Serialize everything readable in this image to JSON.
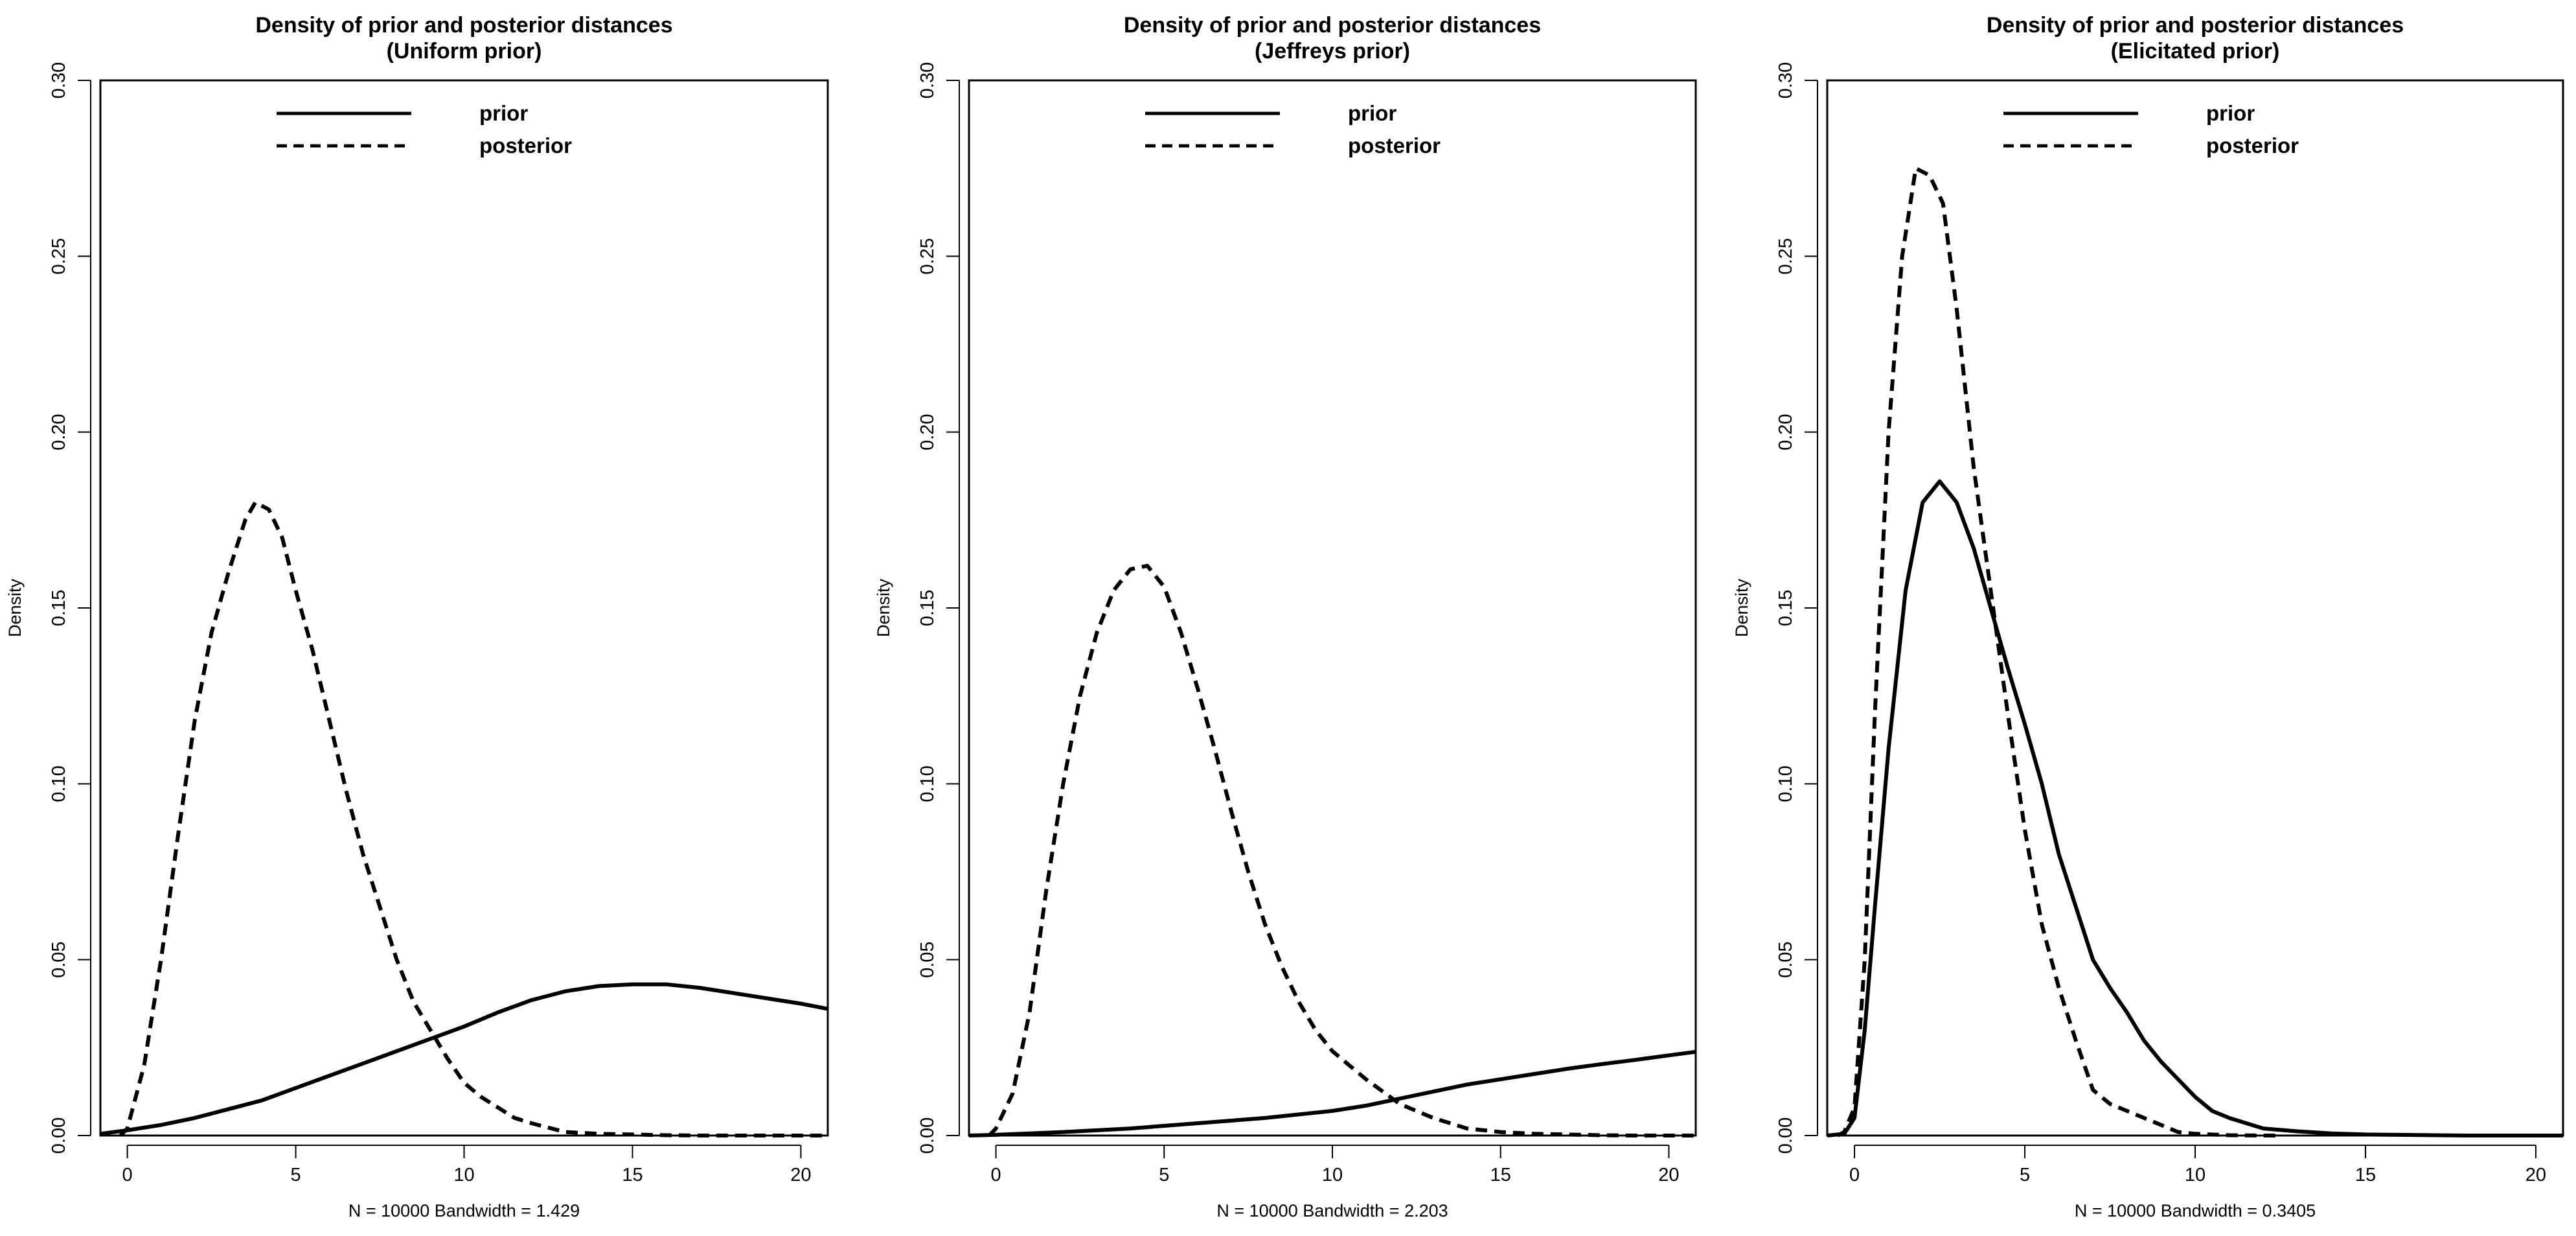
{
  "chart_data": [
    {
      "type": "line",
      "title": "Density of prior and posterior distances",
      "subtitle": "(Uniform prior)",
      "xlabel": "N = 10000   Bandwidth = 1.429",
      "ylabel": "Density",
      "xlim": [
        -0.8,
        20.8
      ],
      "ylim": [
        0,
        0.3
      ],
      "x_ticks": [
        0,
        5,
        10,
        15,
        20
      ],
      "y_ticks": [
        0.0,
        0.05,
        0.1,
        0.15,
        0.2,
        0.25,
        0.3
      ],
      "y_tick_labels": [
        "0.00",
        "0.05",
        "0.10",
        "0.15",
        "0.20",
        "0.25",
        "0.30"
      ],
      "grid": false,
      "legend_position": "top",
      "series": [
        {
          "name": "prior",
          "style": "solid",
          "x": [
            -0.8,
            0,
            1,
            2,
            3,
            4,
            5,
            6,
            7,
            8,
            9,
            10,
            11,
            12,
            13,
            14,
            15,
            16,
            17,
            18,
            19,
            20,
            20.8
          ],
          "y": [
            0.0005,
            0.0015,
            0.003,
            0.005,
            0.0075,
            0.01,
            0.0135,
            0.017,
            0.0205,
            0.024,
            0.0275,
            0.031,
            0.035,
            0.0385,
            0.041,
            0.0425,
            0.043,
            0.043,
            0.042,
            0.0405,
            0.039,
            0.0375,
            0.036
          ]
        },
        {
          "name": "posterior",
          "style": "dashed",
          "x": [
            -0.2,
            0,
            0.5,
            1,
            1.5,
            2,
            2.5,
            3,
            3.5,
            3.8,
            4.2,
            4.6,
            5,
            5.5,
            6,
            6.5,
            7,
            7.5,
            8,
            8.5,
            9,
            9.5,
            10,
            10.5,
            11,
            11.5,
            12,
            13,
            14,
            15,
            16,
            17,
            18,
            19,
            20,
            20.8
          ],
          "y": [
            0,
            0.002,
            0.02,
            0.05,
            0.085,
            0.118,
            0.143,
            0.16,
            0.175,
            0.18,
            0.178,
            0.17,
            0.155,
            0.138,
            0.118,
            0.098,
            0.08,
            0.065,
            0.05,
            0.038,
            0.03,
            0.022,
            0.015,
            0.011,
            0.008,
            0.005,
            0.0035,
            0.001,
            0.0005,
            0.0003,
            0.0001,
            0,
            0,
            0,
            0,
            0
          ]
        }
      ]
    },
    {
      "type": "line",
      "title": "Density of prior and posterior distances",
      "subtitle": "(Jeffreys prior)",
      "xlabel": "N = 10000   Bandwidth = 2.203",
      "ylabel": "Density",
      "xlim": [
        -0.8,
        20.8
      ],
      "ylim": [
        0,
        0.3
      ],
      "x_ticks": [
        0,
        5,
        10,
        15,
        20
      ],
      "y_ticks": [
        0.0,
        0.05,
        0.1,
        0.15,
        0.2,
        0.25,
        0.3
      ],
      "y_tick_labels": [
        "0.00",
        "0.05",
        "0.10",
        "0.15",
        "0.20",
        "0.25",
        "0.30"
      ],
      "grid": false,
      "legend_position": "top",
      "series": [
        {
          "name": "prior",
          "style": "solid",
          "x": [
            -0.8,
            0,
            2,
            4,
            6,
            8,
            10,
            11,
            12,
            13,
            14,
            15,
            16,
            17,
            18,
            19,
            20,
            20.8
          ],
          "y": [
            0,
            0.0002,
            0.001,
            0.002,
            0.0035,
            0.005,
            0.007,
            0.0085,
            0.0105,
            0.0125,
            0.0145,
            0.016,
            0.0175,
            0.019,
            0.0203,
            0.0215,
            0.0228,
            0.0238
          ]
        },
        {
          "name": "posterior",
          "style": "dashed",
          "x": [
            -0.2,
            0,
            0.5,
            1,
            1.5,
            2,
            2.5,
            3,
            3.5,
            4,
            4.5,
            5,
            5.5,
            6,
            6.5,
            7,
            7.5,
            8,
            8.5,
            9,
            9.5,
            10,
            11,
            12,
            13,
            14,
            15,
            16,
            17,
            18,
            19,
            20,
            20.8
          ],
          "y": [
            0,
            0.002,
            0.012,
            0.035,
            0.07,
            0.1,
            0.125,
            0.143,
            0.155,
            0.161,
            0.162,
            0.156,
            0.143,
            0.127,
            0.11,
            0.092,
            0.075,
            0.06,
            0.048,
            0.038,
            0.03,
            0.024,
            0.016,
            0.009,
            0.005,
            0.002,
            0.001,
            0.0005,
            0.0003,
            0.0001,
            0,
            0,
            0
          ]
        }
      ]
    },
    {
      "type": "line",
      "title": "Density of prior and posterior distances",
      "subtitle": "(Elicitated prior)",
      "xlabel": "N = 10000   Bandwidth = 0.3405",
      "ylabel": "Density",
      "xlim": [
        -0.8,
        20.8
      ],
      "ylim": [
        0,
        0.3
      ],
      "x_ticks": [
        0,
        5,
        10,
        15,
        20
      ],
      "y_ticks": [
        0.0,
        0.05,
        0.1,
        0.15,
        0.2,
        0.25,
        0.3
      ],
      "y_tick_labels": [
        "0.00",
        "0.05",
        "0.10",
        "0.15",
        "0.20",
        "0.25",
        "0.30"
      ],
      "grid": false,
      "legend_position": "top",
      "series": [
        {
          "name": "prior",
          "style": "solid",
          "x": [
            -0.8,
            -0.3,
            0,
            0.3,
            0.6,
            1,
            1.5,
            2,
            2.5,
            3,
            3.5,
            4,
            4.5,
            5,
            5.5,
            6,
            6.5,
            7,
            7.5,
            8,
            8.5,
            9,
            9.5,
            10,
            10.5,
            11,
            11.5,
            12,
            13,
            14,
            15,
            16,
            17,
            18,
            19,
            20,
            20.8
          ],
          "y": [
            0,
            0.0005,
            0.005,
            0.03,
            0.065,
            0.11,
            0.155,
            0.18,
            0.186,
            0.18,
            0.167,
            0.15,
            0.133,
            0.117,
            0.1,
            0.08,
            0.065,
            0.05,
            0.042,
            0.035,
            0.027,
            0.021,
            0.016,
            0.011,
            0.007,
            0.005,
            0.0035,
            0.002,
            0.0012,
            0.0006,
            0.0003,
            0.0002,
            0.0001,
            0,
            0,
            0,
            0
          ]
        },
        {
          "name": "posterior",
          "style": "dashed",
          "x": [
            -0.5,
            -0.3,
            0,
            0.3,
            0.6,
            1,
            1.4,
            1.8,
            2.2,
            2.6,
            3,
            3.5,
            4,
            4.5,
            5,
            5.5,
            6,
            6.5,
            7,
            7.5,
            8,
            8.5,
            9,
            9.5,
            10,
            11,
            12,
            12.4
          ],
          "y": [
            0,
            0.001,
            0.008,
            0.05,
            0.12,
            0.2,
            0.25,
            0.275,
            0.273,
            0.265,
            0.235,
            0.19,
            0.155,
            0.12,
            0.087,
            0.06,
            0.042,
            0.027,
            0.013,
            0.009,
            0.007,
            0.005,
            0.003,
            0.001,
            0.0005,
            0.0001,
            0,
            0
          ]
        }
      ]
    }
  ]
}
